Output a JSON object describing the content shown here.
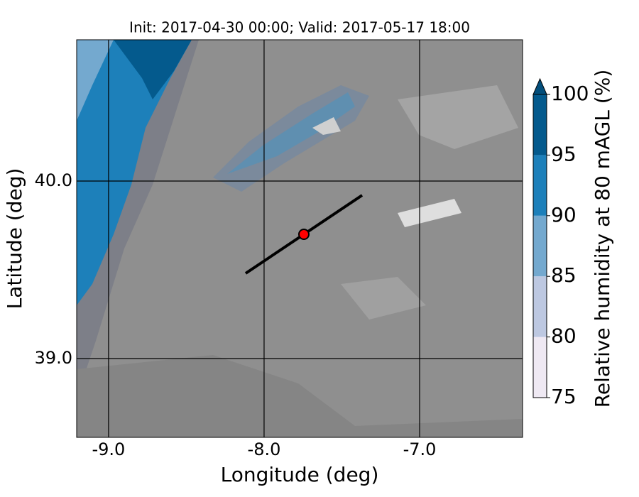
{
  "map": {
    "title": "Init: 2017-04-30 00:00; Valid: 2017-05-17 18:00",
    "xlabel": "Longitude (deg)",
    "ylabel": "Latitude (deg)",
    "xlim": [
      -9.205,
      -6.338
    ],
    "ylim": [
      38.556,
      40.796
    ],
    "xticks": [
      {
        "value": -9,
        "label": "-9.0"
      },
      {
        "value": -8,
        "label": "-8.0"
      },
      {
        "value": -7,
        "label": "-7.0"
      }
    ],
    "yticks": [
      {
        "value": 39,
        "label": "39.0"
      },
      {
        "value": 40,
        "label": "40.0"
      }
    ],
    "colorbar": {
      "label": "Relative humidity at 80 mAGL (%)",
      "levels": [
        75,
        80,
        85,
        90,
        95,
        100
      ],
      "colors": [
        "#efe9f3",
        "#bdc8e1",
        "#74a9cf",
        "#1d80ba",
        "#045a8d"
      ],
      "extend_color": "#034e7b"
    }
  }
}
